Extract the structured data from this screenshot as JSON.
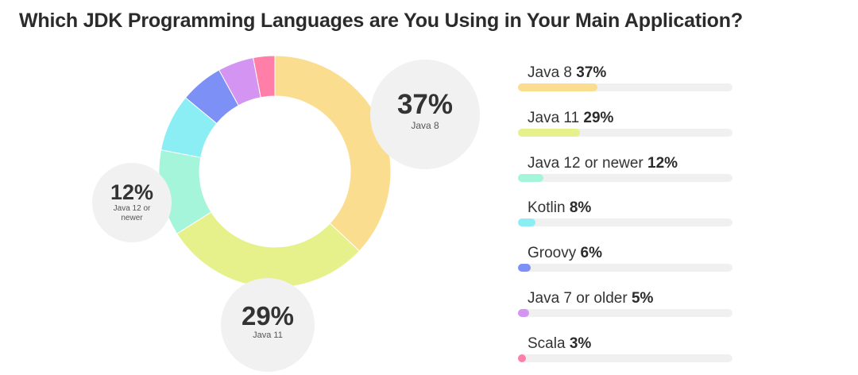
{
  "title": "Which JDK Programming Languages are You Using in Your Main Application?",
  "chart_data": {
    "type": "pie",
    "subtype": "donut",
    "title": "Which JDK Programming Languages are You Using in Your Main Application?",
    "categories": [
      "Java 8",
      "Java 11",
      "Java 12 or newer",
      "Kotlin",
      "Groovy",
      "Java 7 or older",
      "Scala"
    ],
    "values": [
      37,
      29,
      12,
      8,
      6,
      5,
      3
    ],
    "value_labels": [
      "37%",
      "29%",
      "12%",
      "8%",
      "6%",
      "5%",
      "3%"
    ],
    "colors": [
      "#fbdd90",
      "#e6f18b",
      "#a4f5da",
      "#8aeef4",
      "#7d90f5",
      "#d495f2",
      "#ff7fa8"
    ],
    "unit": "%",
    "legend": "right"
  },
  "callouts": [
    {
      "pct": "37%",
      "label": "Java 8"
    },
    {
      "pct": "29%",
      "label": "Java 11"
    },
    {
      "pct": "12%",
      "label": "Java 12 or newer"
    }
  ],
  "legend": [
    {
      "name": "Java 8",
      "pct": "37%"
    },
    {
      "name": "Java 11",
      "pct": "29%"
    },
    {
      "name": "Java 12 or newer",
      "pct": "12%"
    },
    {
      "name": "Kotlin",
      "pct": "8%"
    },
    {
      "name": "Groovy",
      "pct": "6%"
    },
    {
      "name": "Java 7 or older",
      "pct": "5%"
    },
    {
      "name": "Scala",
      "pct": "3%"
    }
  ]
}
